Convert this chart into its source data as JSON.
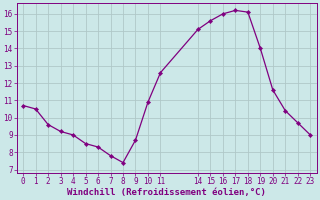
{
  "x": [
    0,
    1,
    2,
    3,
    4,
    5,
    6,
    7,
    8,
    9,
    10,
    11,
    14,
    15,
    16,
    17,
    18,
    19,
    20,
    21,
    22,
    23
  ],
  "y": [
    10.7,
    10.5,
    9.6,
    9.2,
    9.0,
    8.5,
    8.3,
    7.8,
    7.4,
    8.7,
    10.9,
    12.6,
    15.1,
    15.6,
    16.0,
    16.2,
    16.1,
    14.0,
    11.6,
    10.4,
    9.7,
    9.0
  ],
  "line_color": "#800080",
  "marker": "D",
  "marker_size": 2.2,
  "bg_color": "#cce8e8",
  "grid_color": "#b0c8c8",
  "xlabel": "Windchill (Refroidissement éolien,°C)",
  "xlabel_color": "#800080",
  "tick_color": "#800080",
  "ylim": [
    6.8,
    16.6
  ],
  "yticks": [
    7,
    8,
    9,
    10,
    11,
    12,
    13,
    14,
    15,
    16
  ],
  "xticks": [
    0,
    1,
    2,
    3,
    4,
    5,
    6,
    7,
    8,
    9,
    10,
    11,
    14,
    15,
    16,
    17,
    18,
    19,
    20,
    21,
    22,
    23
  ],
  "xlim": [
    -0.5,
    23.5
  ],
  "spine_color": "#800080",
  "tick_fontsize": 5.5,
  "xlabel_fontsize": 6.5
}
